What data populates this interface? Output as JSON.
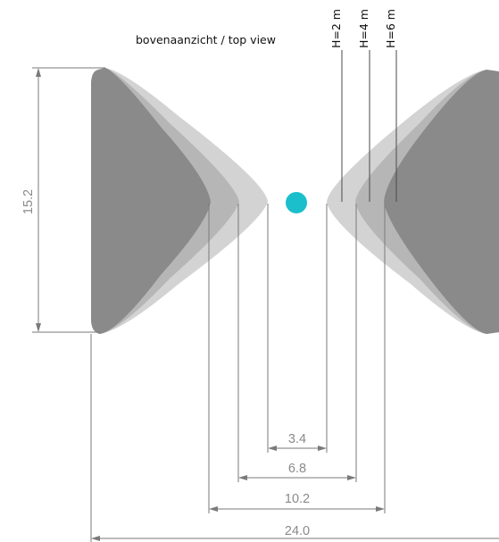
{
  "view_label": "bovenaanzicht / top view",
  "heights": [
    "H=2 m",
    "H=4 m",
    "H=6 m"
  ],
  "dimensions": {
    "height": "15.2",
    "d_2m": "3.4",
    "d_4m": "6.8",
    "d_6m": "10.2",
    "total": "24.0"
  },
  "colors": {
    "sensor": "#1bbfcb",
    "zone_2m": "#d3d3d3",
    "zone_4m": "#b6b6b6",
    "zone_6m": "#8a8a8a",
    "dimension": "#7a7a7a"
  }
}
